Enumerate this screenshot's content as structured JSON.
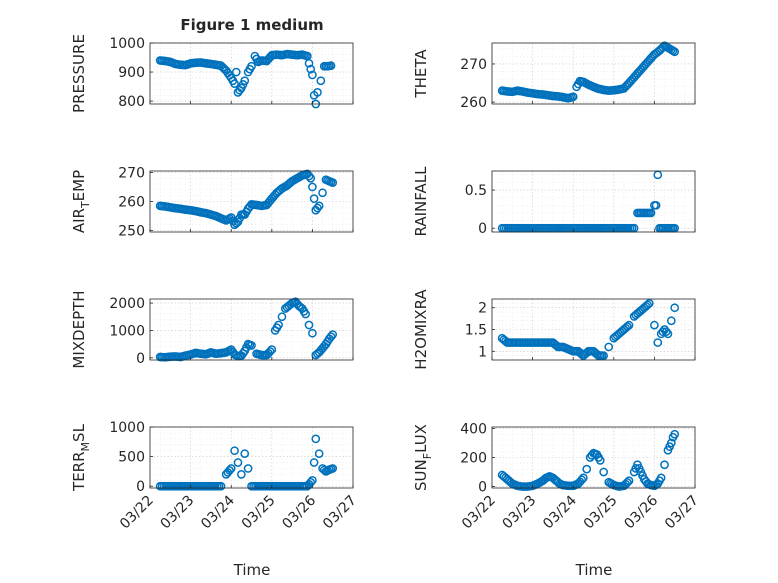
{
  "figure": {
    "title": "Figure 1 medium",
    "xlabel": "Time"
  },
  "marker_color": "#0072BD",
  "chart_data": [
    {
      "id": "pressure",
      "type": "scatter",
      "title": "Figure 1 medium",
      "ylabel": "PRESSURE",
      "ylabel_sub": "",
      "ylabel_tail": "",
      "xlim": [
        "03/22",
        "03/27"
      ],
      "ylim": [
        790,
        1000
      ],
      "yticks": [
        800,
        900,
        1000
      ],
      "xtick_labels_visible": false,
      "x": [
        "03/22 06:00",
        "03/22 09:00",
        "03/22 12:00",
        "03/22 15:00",
        "03/22 18:00",
        "03/22 21:00",
        "03/23 00:00",
        "03/23 03:00",
        "03/23 06:00",
        "03/23 09:00",
        "03/23 12:00",
        "03/23 15:00",
        "03/23 18:00",
        "03/23 21:00",
        "03/24 00:00",
        "03/24 02:00",
        "03/24 03:00",
        "03/24 04:00",
        "03/24 06:00",
        "03/24 08:00",
        "03/24 10:00",
        "03/24 12:00",
        "03/24 14:00",
        "03/24 16:00",
        "03/24 18:00",
        "03/24 21:00",
        "03/25 00:00",
        "03/25 03:00",
        "03/25 06:00",
        "03/25 09:00",
        "03/25 12:00",
        "03/25 15:00",
        "03/25 18:00",
        "03/25 21:00",
        "03/25 22:00",
        "03/25 23:00",
        "03/26 00:00",
        "03/26 01:00",
        "03/26 02:00",
        "03/26 03:00",
        "03/26 05:00",
        "03/26 07:00",
        "03/26 09:00",
        "03/26 11:00"
      ],
      "y": [
        940,
        938,
        935,
        928,
        925,
        924,
        930,
        932,
        933,
        930,
        928,
        925,
        922,
        905,
        880,
        860,
        900,
        830,
        845,
        870,
        900,
        920,
        955,
        935,
        940,
        938,
        958,
        960,
        958,
        962,
        960,
        958,
        960,
        955,
        930,
        910,
        890,
        820,
        790,
        830,
        870,
        920,
        920,
        922
      ]
    },
    {
      "id": "theta",
      "type": "scatter",
      "ylabel": "THETA",
      "ylabel_sub": "",
      "ylabel_tail": "",
      "xlim": [
        "03/22",
        "03/27"
      ],
      "ylim": [
        259.5,
        275.5
      ],
      "yticks": [
        260,
        270
      ],
      "xtick_labels_visible": false,
      "x": [
        "03/22 06:00",
        "03/22 09:00",
        "03/22 12:00",
        "03/22 15:00",
        "03/22 18:00",
        "03/22 21:00",
        "03/23 00:00",
        "03/23 03:00",
        "03/23 06:00",
        "03/23 09:00",
        "03/23 12:00",
        "03/23 15:00",
        "03/23 18:00",
        "03/23 21:00",
        "03/24 00:00",
        "03/24 02:00",
        "03/24 04:00",
        "03/24 06:00",
        "03/24 09:00",
        "03/24 12:00",
        "03/24 15:00",
        "03/24 18:00",
        "03/24 21:00",
        "03/25 00:00",
        "03/25 03:00",
        "03/25 06:00",
        "03/25 09:00",
        "03/25 12:00",
        "03/25 15:00",
        "03/25 18:00",
        "03/25 21:00",
        "03/26 00:00",
        "03/26 03:00",
        "03/26 06:00",
        "03/26 09:00",
        "03/26 12:00"
      ],
      "y": [
        263,
        262.8,
        262.7,
        263,
        262.8,
        262.5,
        262.3,
        262.1,
        262,
        261.8,
        261.6,
        261.5,
        261.3,
        261,
        261.4,
        264,
        265.5,
        265.3,
        264.6,
        264,
        263.5,
        263.2,
        263,
        263.1,
        263.3,
        263.6,
        265,
        266.5,
        268,
        269.5,
        271,
        272.5,
        273.5,
        274.8,
        274,
        273.2
      ]
    },
    {
      "id": "air_temp",
      "type": "scatter",
      "ylabel": "AIR",
      "ylabel_sub": "T",
      "ylabel_tail": "EMP",
      "xlim": [
        "03/22",
        "03/27"
      ],
      "ylim": [
        249.5,
        270.5
      ],
      "yticks": [
        250,
        260,
        270
      ],
      "xtick_labels_visible": false,
      "x": [
        "03/22 06:00",
        "03/22 09:00",
        "03/22 12:00",
        "03/22 15:00",
        "03/22 18:00",
        "03/22 21:00",
        "03/23 00:00",
        "03/23 03:00",
        "03/23 06:00",
        "03/23 09:00",
        "03/23 12:00",
        "03/23 15:00",
        "03/23 18:00",
        "03/23 21:00",
        "03/24 00:00",
        "03/24 02:00",
        "03/24 04:00",
        "03/24 06:00",
        "03/24 08:00",
        "03/24 10:00",
        "03/24 12:00",
        "03/24 15:00",
        "03/24 18:00",
        "03/24 21:00",
        "03/25 00:00",
        "03/25 03:00",
        "03/25 06:00",
        "03/25 09:00",
        "03/25 12:00",
        "03/25 15:00",
        "03/25 18:00",
        "03/25 21:00",
        "03/25 23:00",
        "03/26 00:00",
        "03/26 01:00",
        "03/26 02:00",
        "03/26 04:00",
        "03/26 06:00",
        "03/26 08:00",
        "03/26 10:00",
        "03/26 12:00"
      ],
      "y": [
        258.5,
        258.3,
        258,
        257.7,
        257.5,
        257.2,
        257,
        256.7,
        256.3,
        256,
        255.5,
        255,
        254.2,
        253.5,
        254.5,
        252,
        253,
        255.5,
        255.5,
        257.5,
        259,
        258.8,
        258.5,
        258.8,
        261,
        263,
        264.5,
        265.5,
        267,
        268,
        269,
        269.5,
        268,
        265,
        261,
        257,
        258.5,
        263,
        267.5,
        267,
        266.5
      ]
    },
    {
      "id": "rainfall",
      "type": "scatter",
      "ylabel": "RAINFALL",
      "ylabel_sub": "",
      "ylabel_tail": "",
      "xlim": [
        "03/22",
        "03/27"
      ],
      "ylim": [
        -0.05,
        0.75
      ],
      "yticks": [
        0,
        0.5
      ],
      "xtick_labels_visible": false,
      "x": [
        "03/22 06:00",
        "03/22 12:00",
        "03/22 18:00",
        "03/23 00:00",
        "03/23 06:00",
        "03/23 12:00",
        "03/23 18:00",
        "03/24 00:00",
        "03/24 06:00",
        "03/24 12:00",
        "03/24 18:00",
        "03/25 00:00",
        "03/25 06:00",
        "03/25 12:00",
        "03/25 14:00",
        "03/25 16:00",
        "03/25 18:00",
        "03/25 20:00",
        "03/25 22:00",
        "03/26 00:00",
        "03/26 01:00",
        "03/26 02:00",
        "03/26 03:00",
        "03/26 04:00",
        "03/26 06:00",
        "03/26 08:00",
        "03/26 10:00",
        "03/26 12:00"
      ],
      "y": [
        0,
        0,
        0,
        0,
        0,
        0,
        0,
        0,
        0,
        0,
        0,
        0,
        0,
        0,
        0.2,
        0.2,
        0.2,
        0.2,
        0.2,
        0.3,
        0.3,
        0.7,
        0,
        0,
        0,
        0,
        0,
        0
      ]
    },
    {
      "id": "mixdepth",
      "type": "scatter",
      "ylabel": "MIXDEPTH",
      "ylabel_sub": "",
      "ylabel_tail": "",
      "xlim": [
        "03/22",
        "03/27"
      ],
      "ylim": [
        -80,
        2150
      ],
      "yticks": [
        0,
        1000,
        2000
      ],
      "xtick_labels_visible": false,
      "x": [
        "03/22 06:00",
        "03/22 09:00",
        "03/22 12:00",
        "03/22 15:00",
        "03/22 18:00",
        "03/22 21:00",
        "03/23 00:00",
        "03/23 03:00",
        "03/23 06:00",
        "03/23 09:00",
        "03/23 12:00",
        "03/23 15:00",
        "03/23 18:00",
        "03/23 21:00",
        "03/24 00:00",
        "03/24 02:00",
        "03/24 04:00",
        "03/24 06:00",
        "03/24 08:00",
        "03/24 10:00",
        "03/24 12:00",
        "03/24 15:00",
        "03/24 18:00",
        "03/24 21:00",
        "03/25 00:00",
        "03/25 02:00",
        "03/25 04:00",
        "03/25 06:00",
        "03/25 08:00",
        "03/25 10:00",
        "03/25 12:00",
        "03/25 14:00",
        "03/25 16:00",
        "03/25 18:00",
        "03/25 20:00",
        "03/25 22:00",
        "03/26 00:00",
        "03/26 02:00",
        "03/26 04:00",
        "03/26 06:00",
        "03/26 08:00",
        "03/26 10:00",
        "03/26 12:00"
      ],
      "y": [
        30,
        20,
        40,
        50,
        30,
        80,
        120,
        180,
        150,
        130,
        200,
        150,
        170,
        200,
        300,
        120,
        60,
        80,
        250,
        500,
        450,
        150,
        100,
        100,
        300,
        1000,
        1200,
        1500,
        1800,
        1900,
        2000,
        2050,
        1900,
        1800,
        1600,
        1200,
        900,
        100,
        200,
        350,
        500,
        700,
        850
      ]
    },
    {
      "id": "h2omixra",
      "type": "scatter",
      "ylabel": "H2OMIXRA",
      "ylabel_sub": "",
      "ylabel_tail": "",
      "xlim": [
        "03/22",
        "03/27"
      ],
      "ylim": [
        0.8,
        2.2
      ],
      "yticks": [
        1,
        1.5,
        2
      ],
      "xtick_labels_visible": false,
      "x": [
        "03/22 06:00",
        "03/22 09:00",
        "03/22 12:00",
        "03/22 15:00",
        "03/22 18:00",
        "03/22 21:00",
        "03/23 00:00",
        "03/23 03:00",
        "03/23 06:00",
        "03/23 09:00",
        "03/23 12:00",
        "03/23 15:00",
        "03/23 18:00",
        "03/23 21:00",
        "03/24 00:00",
        "03/24 03:00",
        "03/24 06:00",
        "03/24 09:00",
        "03/24 12:00",
        "03/24 15:00",
        "03/24 18:00",
        "03/24 21:00",
        "03/25 00:00",
        "03/25 03:00",
        "03/25 06:00",
        "03/25 09:00",
        "03/25 12:00",
        "03/25 15:00",
        "03/25 18:00",
        "03/25 21:00",
        "03/26 00:00",
        "03/26 02:00",
        "03/26 04:00",
        "03/26 06:00",
        "03/26 08:00",
        "03/26 10:00",
        "03/26 12:00"
      ],
      "y": [
        1.3,
        1.2,
        1.2,
        1.2,
        1.2,
        1.2,
        1.2,
        1.2,
        1.2,
        1.2,
        1.2,
        1.1,
        1.1,
        1.05,
        1.0,
        1.0,
        0.9,
        1.0,
        1.0,
        0.9,
        0.9,
        1.1,
        1.3,
        1.4,
        1.5,
        1.6,
        1.8,
        1.9,
        2.0,
        2.1,
        1.6,
        1.2,
        1.4,
        1.5,
        1.4,
        1.7,
        2.0
      ]
    },
    {
      "id": "terr_msl",
      "type": "scatter",
      "ylabel": "TERR",
      "ylabel_sub": "M",
      "ylabel_tail": "SL",
      "xlim": [
        "03/22",
        "03/27"
      ],
      "ylim": [
        -30,
        1000
      ],
      "yticks": [
        0,
        500,
        1000
      ],
      "xtick_labels_visible": true,
      "xtick_labels": [
        "03/22",
        "03/23",
        "03/24",
        "03/25",
        "03/26",
        "03/27"
      ],
      "x": [
        "03/22 06:00",
        "03/22 12:00",
        "03/22 18:00",
        "03/23 00:00",
        "03/23 06:00",
        "03/23 12:00",
        "03/23 18:00",
        "03/23 21:00",
        "03/24 00:00",
        "03/24 02:00",
        "03/24 04:00",
        "03/24 06:00",
        "03/24 08:00",
        "03/24 10:00",
        "03/24 12:00",
        "03/24 18:00",
        "03/25 00:00",
        "03/25 06:00",
        "03/25 12:00",
        "03/25 18:00",
        "03/25 21:00",
        "03/26 00:00",
        "03/26 01:00",
        "03/26 02:00",
        "03/26 04:00",
        "03/26 06:00",
        "03/26 08:00",
        "03/26 10:00",
        "03/26 12:00"
      ],
      "y": [
        0,
        0,
        0,
        0,
        0,
        0,
        0,
        200,
        300,
        600,
        400,
        200,
        550,
        300,
        0,
        0,
        0,
        0,
        0,
        0,
        0,
        100,
        400,
        800,
        550,
        300,
        250,
        280,
        300
      ]
    },
    {
      "id": "sun_flux",
      "type": "scatter",
      "ylabel": "SUN",
      "ylabel_sub": "F",
      "ylabel_tail": "LUX",
      "xlim": [
        "03/22",
        "03/27"
      ],
      "ylim": [
        -10,
        410
      ],
      "yticks": [
        0,
        200,
        400
      ],
      "xtick_labels_visible": true,
      "xtick_labels": [
        "03/22",
        "03/23",
        "03/24",
        "03/25",
        "03/26",
        "03/27"
      ],
      "x": [
        "03/22 06:00",
        "03/22 08:00",
        "03/22 10:00",
        "03/22 12:00",
        "03/22 15:00",
        "03/22 18:00",
        "03/22 21:00",
        "03/23 00:00",
        "03/23 03:00",
        "03/23 06:00",
        "03/23 08:00",
        "03/23 10:00",
        "03/23 12:00",
        "03/23 14:00",
        "03/23 16:00",
        "03/23 18:00",
        "03/23 21:00",
        "03/24 00:00",
        "03/24 03:00",
        "03/24 06:00",
        "03/24 08:00",
        "03/24 10:00",
        "03/24 12:00",
        "03/24 14:00",
        "03/24 16:00",
        "03/24 18:00",
        "03/24 21:00",
        "03/25 00:00",
        "03/25 03:00",
        "03/25 06:00",
        "03/25 09:00",
        "03/25 12:00",
        "03/25 14:00",
        "03/25 16:00",
        "03/25 18:00",
        "03/25 20:00",
        "03/25 22:00",
        "03/26 00:00",
        "03/26 02:00",
        "03/26 04:00",
        "03/26 06:00",
        "03/26 08:00",
        "03/26 10:00",
        "03/26 11:00",
        "03/26 12:00"
      ],
      "y": [
        80,
        60,
        40,
        20,
        5,
        0,
        0,
        5,
        20,
        40,
        60,
        70,
        60,
        40,
        20,
        10,
        5,
        5,
        20,
        60,
        120,
        200,
        230,
        220,
        180,
        100,
        30,
        10,
        0,
        5,
        40,
        100,
        150,
        100,
        50,
        20,
        10,
        5,
        20,
        60,
        150,
        250,
        300,
        340,
        360
      ]
    }
  ]
}
